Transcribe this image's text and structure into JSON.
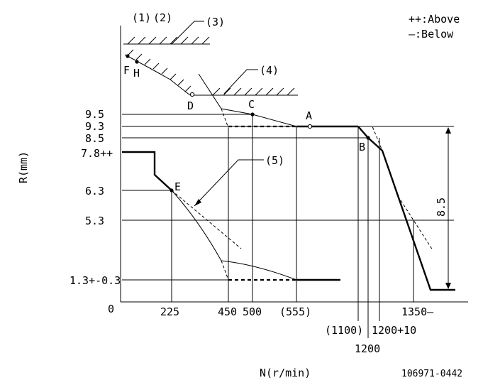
{
  "legend": {
    "above": "++:Above",
    "below": "—:Below"
  },
  "axes": {
    "y_label": "R(mm)",
    "x_label": "N(r/min)",
    "origin": "0"
  },
  "y_ticks": [
    "9.5",
    "9.3",
    "8.5",
    "7.8++",
    "6.3",
    "5.3",
    "1.3+-0.3"
  ],
  "x_ticks": [
    "225",
    "450",
    "500",
    "(555)",
    "(1100)",
    "1200",
    "1200+10",
    "1350—"
  ],
  "annotations": {
    "a1": "(1)",
    "a2": "(2)",
    "a3": "(3)",
    "a4": "(4)",
    "a5": "(5)"
  },
  "points": {
    "A": "A",
    "B": "B",
    "C": "C",
    "D": "D",
    "E": "E",
    "F": "F",
    "H": "H"
  },
  "dimension": "8.5",
  "figure_code": "106971-0442"
}
